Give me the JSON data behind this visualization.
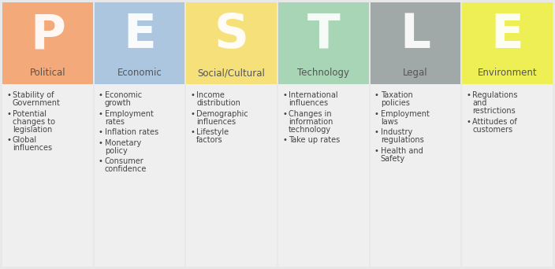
{
  "columns": [
    {
      "letter": "P",
      "title": "Political",
      "header_color": "#F4A97A",
      "body_color": "#EFEFEF",
      "bullets": [
        "Stability of\nGovernment",
        "Potential\nchanges to\nlegislation",
        "Global\ninfluences"
      ]
    },
    {
      "letter": "E",
      "title": "Economic",
      "header_color": "#ADC6E0",
      "body_color": "#EFEFEF",
      "bullets": [
        "Economic\ngrowth",
        "Employment\nrates",
        "Inflation rates",
        "Monetary\npolicy",
        "Consumer\nconfidence"
      ]
    },
    {
      "letter": "S",
      "title": "Social/Cultural",
      "header_color": "#F5E07A",
      "body_color": "#EFEFEF",
      "bullets": [
        "Income\ndistribution",
        "Demographic\ninfluences",
        "Lifestyle\nfactors"
      ]
    },
    {
      "letter": "T",
      "title": "Technology",
      "header_color": "#A8D5B5",
      "body_color": "#EFEFEF",
      "bullets": [
        "International\ninfluences",
        "Changes in\ninformation\ntechnology",
        "Take up rates"
      ]
    },
    {
      "letter": "L",
      "title": "Legal",
      "header_color": "#A0A8A8",
      "body_color": "#EFEFEF",
      "bullets": [
        "Taxation\npolicies",
        "Employment\nlaws",
        "Industry\nregulations",
        "Health and\nSafety"
      ]
    },
    {
      "letter": "E",
      "title": "Environment",
      "header_color": "#EEEE55",
      "body_color": "#EFEFEF",
      "bullets": [
        "Regulations\nand\nrestrictions",
        "Attitudes of\ncustomers"
      ]
    }
  ],
  "background_color": "#E8E8E8",
  "letter_color": "#FFFFFF",
  "title_color": "#555555",
  "bullet_color": "#444444",
  "letter_fontsize": 44,
  "title_fontsize": 8.5,
  "bullet_fontsize": 7.0,
  "n_cols": 6,
  "fig_width": 7.04,
  "fig_height": 3.42,
  "dpi": 100
}
